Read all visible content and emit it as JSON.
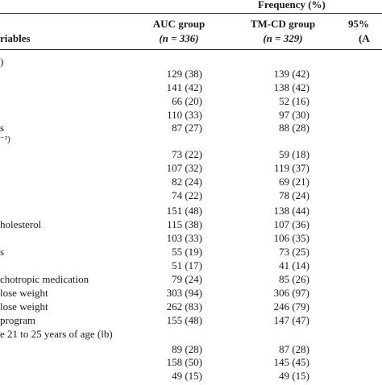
{
  "table": {
    "header": {
      "group_title": "Frequency (%)",
      "variables_label": "riables",
      "auc_title": "AUC group",
      "auc_n": "(n = 336)",
      "tmcd_title": "TM-CD group",
      "tmcd_n": "(n = 329)",
      "ci_title": "95%",
      "ci_sub": "(A"
    },
    "rows": [
      {
        "label": ")",
        "auc": "",
        "tmcd": ""
      },
      {
        "label": "",
        "auc": "129 (38)",
        "tmcd": "139 (42)"
      },
      {
        "label": "",
        "auc": "141 (42)",
        "tmcd": "138 (42)"
      },
      {
        "label": "",
        "auc": "66 (20)",
        "tmcd": "52 (16)"
      },
      {
        "label": "",
        "auc": "110 (33)",
        "tmcd": "97 (30)"
      },
      {
        "label": "s",
        "auc": "87 (27)",
        "tmcd": "88 (28)"
      },
      {
        "label": "⁻²)",
        "auc": "",
        "tmcd": ""
      },
      {
        "label": "",
        "auc": "73 (22)",
        "tmcd": "59 (18)"
      },
      {
        "label": "",
        "auc": "107 (32)",
        "tmcd": "119 (37)"
      },
      {
        "label": "",
        "auc": "82 (24)",
        "tmcd": "69 (21)"
      },
      {
        "label": "",
        "auc": "74 (22)",
        "tmcd": "78 (24)"
      },
      {
        "label": "",
        "auc": "151 (48)",
        "tmcd": "138 (44)"
      },
      {
        "label": "holesterol",
        "auc": "115 (38)",
        "tmcd": "107 (36)"
      },
      {
        "label": "",
        "auc": "103 (33)",
        "tmcd": "106 (35)"
      },
      {
        "label": "s",
        "auc": "55 (19)",
        "tmcd": "73 (25)"
      },
      {
        "label": "",
        "auc": "51 (17)",
        "tmcd": "41 (14)"
      },
      {
        "label": "chotropic medication",
        "auc": "79 (24)",
        "tmcd": "85 (26)"
      },
      {
        "label": "lose weight",
        "auc": "303 (94)",
        "tmcd": "306 (97)"
      },
      {
        "label": "lose weight",
        "auc": "262 (83)",
        "tmcd": "246 (79)"
      },
      {
        "label": "program",
        "auc": "155 (48)",
        "tmcd": "147 (47)"
      },
      {
        "label": "e 21 to 25 years of age (lb)",
        "auc": "",
        "tmcd": ""
      },
      {
        "label": "",
        "auc": "89 (28)",
        "tmcd": "87 (28)"
      },
      {
        "label": "",
        "auc": "158 (50)",
        "tmcd": "145 (45)"
      },
      {
        "label": "",
        "auc": "49 (15)",
        "tmcd": "49 (15)"
      }
    ]
  }
}
